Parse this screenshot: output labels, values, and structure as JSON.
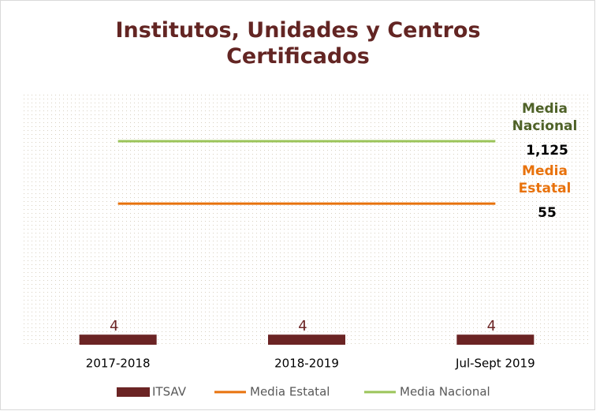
{
  "chart_data": {
    "type": "bar",
    "title": "Institutos, Unidades y Centros Certificados",
    "categories": [
      "2017-2018",
      "2018-2019",
      "Jul-Sept 2019"
    ],
    "ylim": [
      0,
      100
    ],
    "y2lim": [
      0.06,
      12000
    ],
    "y2_log": true,
    "series": [
      {
        "name": "ITSAV",
        "color": "#6b2424",
        "values": [
          4,
          4,
          4
        ]
      },
      {
        "name": "Media Estatal",
        "type": "line",
        "axis": "y2",
        "color": "#e8720c",
        "label_color": "#e8720c",
        "values": [
          55,
          55,
          55
        ],
        "value_labels": [
          null,
          null,
          "55"
        ]
      },
      {
        "name": "Media Nacional",
        "type": "line",
        "axis": "y2",
        "color": "#9bc45a",
        "label_color": "#4f6228",
        "values": [
          1125,
          1125,
          1125
        ],
        "value_labels": [
          null,
          null,
          "1,125"
        ]
      }
    ]
  }
}
